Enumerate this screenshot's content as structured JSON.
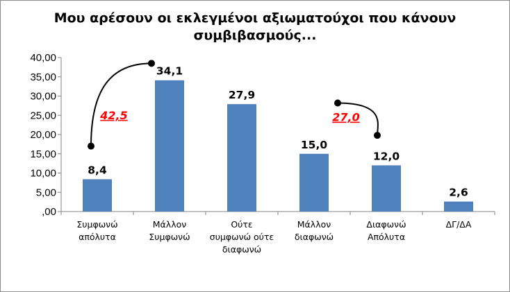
{
  "chart_data": {
    "type": "bar",
    "title": "Μου αρέσουν οι εκλεγμένοι αξιωματούχοι που κάνουν συμβιβασμούς...",
    "categories": [
      [
        "Συμφωνώ",
        "απόλυτα"
      ],
      [
        "Μάλλον",
        "Συμφωνώ"
      ],
      [
        "Ούτε",
        "συμφωνώ ούτε",
        "διαφωνώ"
      ],
      [
        "Μάλλον",
        "διαφωνώ"
      ],
      [
        "Διαφωνώ",
        "Απόλυτα"
      ],
      [
        "ΔΓ/ΔΑ"
      ]
    ],
    "values": [
      8.4,
      34.1,
      27.9,
      15.0,
      12.0,
      2.6
    ],
    "value_labels": [
      "8,4",
      "34,1",
      "27,9",
      "15,0",
      "12,0",
      "2,6"
    ],
    "ylim": [
      0,
      40
    ],
    "yticks": [
      "40,00",
      "35,00",
      "30,00",
      "25,00",
      "20,00",
      "15,00",
      "10,00",
      "5,00",
      ",00"
    ],
    "ytick_values": [
      40,
      35,
      30,
      25,
      20,
      15,
      10,
      5,
      0
    ],
    "bar_color": "#4f81bd",
    "grid": false,
    "legend": "none",
    "annotations": [
      {
        "text": "42,5",
        "from_category": 0,
        "to_category": 1,
        "color": "#ff0000"
      },
      {
        "text": "27,0",
        "from_category": 3,
        "to_category": 4,
        "color": "#ff0000"
      }
    ]
  }
}
